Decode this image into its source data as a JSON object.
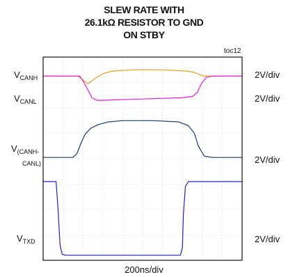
{
  "figure": {
    "title_lines": [
      "SLEW RATE WITH",
      "26.1kΩ RESISTOR TO GND",
      "ON STBY"
    ],
    "figure_id": "toc12",
    "x_scale_label": "200ns/div"
  },
  "traces": [
    {
      "label_main": "V",
      "label_sub": "CANH",
      "scale": "2V/div"
    },
    {
      "label_main": "V",
      "label_sub": "CANL",
      "scale": "2V/div"
    },
    {
      "label_main": "V",
      "label_sub": "(CANH-",
      "label_sub2": "CANL)",
      "scale": "2V/div"
    },
    {
      "label_main": "V",
      "label_sub": "TXD",
      "scale": "2V/div"
    }
  ],
  "chart_data": {
    "type": "line",
    "title": "SLEW RATE WITH 26.1kΩ RESISTOR TO GND ON STBY",
    "x_units": "divisions",
    "xlabel": "200ns/div",
    "xlim": [
      0,
      10
    ],
    "y_units": "divisions",
    "ylim": [
      0,
      8
    ],
    "grid": true,
    "colors": {
      "CANH": "#e8a020",
      "CANL": "#e020e0",
      "CANH-CANL": "#1a3a7a",
      "TXD": "#2020d0"
    },
    "series": [
      {
        "name": "VCANH",
        "color_key": "CANH",
        "scale": "2V/div",
        "x": [
          0,
          1.75,
          2.0,
          2.25,
          2.6,
          3.0,
          3.5,
          4.5,
          6.0,
          7.2,
          7.6,
          7.9,
          8.1,
          8.4,
          10
        ],
        "y": [
          7.25,
          7.25,
          7.1,
          6.95,
          7.15,
          7.35,
          7.45,
          7.5,
          7.5,
          7.45,
          7.4,
          7.3,
          7.25,
          7.25,
          7.25
        ]
      },
      {
        "name": "VCANL",
        "color_key": "CANL",
        "scale": "2V/div",
        "x": [
          0,
          1.85,
          2.05,
          2.25,
          2.45,
          2.7,
          3.0,
          5.0,
          7.0,
          7.5,
          7.75,
          7.95,
          8.2,
          8.5,
          10
        ],
        "y": [
          7.25,
          7.25,
          7.0,
          6.7,
          6.4,
          6.3,
          6.3,
          6.35,
          6.4,
          6.45,
          6.6,
          6.95,
          7.2,
          7.25,
          7.25
        ]
      },
      {
        "name": "V(CANH-CANL)",
        "color_key": "CANH-CANL",
        "scale": "2V/div",
        "x": [
          0,
          1.5,
          1.7,
          1.9,
          2.1,
          2.4,
          2.8,
          3.3,
          4.0,
          5.5,
          6.8,
          7.3,
          7.6,
          7.8,
          8.1,
          8.5,
          10
        ],
        "y": [
          4.05,
          4.05,
          4.2,
          4.6,
          4.95,
          5.2,
          5.35,
          5.45,
          5.5,
          5.5,
          5.45,
          5.3,
          5.0,
          4.5,
          4.1,
          4.05,
          4.05
        ]
      },
      {
        "name": "VTXD",
        "color_key": "TXD",
        "scale": "2V/div",
        "x": [
          0,
          0.65,
          0.75,
          0.85,
          0.95,
          1.1,
          6.9,
          7.0,
          7.05,
          7.15,
          7.3,
          10
        ],
        "y": [
          3.1,
          3.1,
          2.0,
          0.6,
          0.25,
          0.2,
          0.2,
          0.5,
          1.8,
          2.9,
          3.1,
          3.1
        ]
      }
    ]
  }
}
